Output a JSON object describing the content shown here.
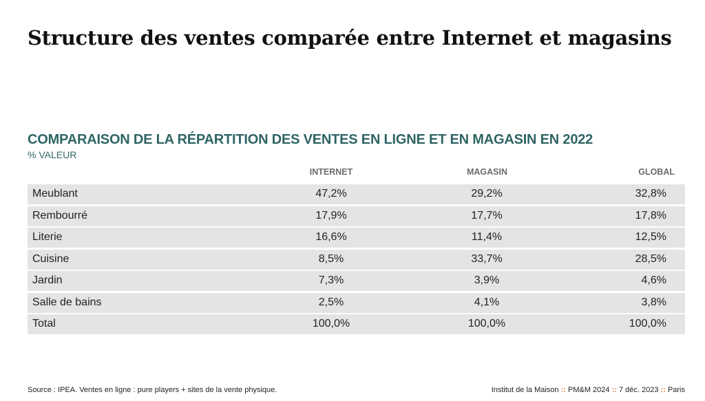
{
  "slide": {
    "title": "Structure des ventes comparée entre Internet et magasins"
  },
  "table": {
    "heading": "COMPARAISON DE LA RÉPARTITION DES VENTES EN LIGNE ET EN MAGASIN EN 2022",
    "subheading": "% VALEUR",
    "columns": [
      "INTERNET",
      "MAGASIN",
      "GLOBAL"
    ],
    "rows": [
      {
        "label": "Meublant",
        "internet": "47,2%",
        "magasin": "29,2%",
        "global": "32,8%"
      },
      {
        "label": "Rembourré",
        "internet": "17,9%",
        "magasin": "17,7%",
        "global": "17,8%"
      },
      {
        "label": "Literie",
        "internet": "16,6%",
        "magasin": "11,4%",
        "global": "12,5%"
      },
      {
        "label": "Cuisine",
        "internet": "8,5%",
        "magasin": "33,7%",
        "global": "28,5%"
      },
      {
        "label": "Jardin",
        "internet": "7,3%",
        "magasin": "3,9%",
        "global": "4,6%"
      },
      {
        "label": "Salle de bains",
        "internet": "2,5%",
        "magasin": "4,1%",
        "global": "3,8%"
      },
      {
        "label": "Total",
        "internet": "100,0%",
        "magasin": "100,0%",
        "global": "100,0%"
      }
    ]
  },
  "footer": {
    "source": "Source : IPEA. Ventes en ligne : pure players + sites de la vente physique.",
    "credit": {
      "organization": "Institut de la Maison",
      "event": "PM&M 2024",
      "date": "7 déc. 2023",
      "city": "Paris",
      "separator": "::"
    }
  },
  "colors": {
    "heading": "#2f6465",
    "row_background": "#e4e4e4",
    "separator": "#e0793a"
  }
}
